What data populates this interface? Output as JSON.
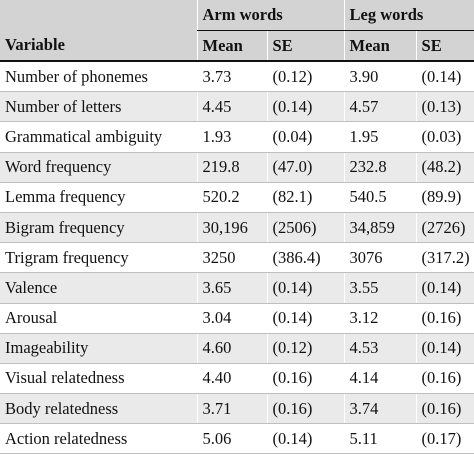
{
  "table": {
    "group_headers": [
      "",
      "Arm words",
      "Leg words"
    ],
    "column_headers": [
      "Variable",
      "Mean",
      "SE",
      "Mean",
      "SE"
    ],
    "rows": [
      [
        "Number of phonemes",
        "3.73",
        "(0.12)",
        "3.90",
        "(0.14)"
      ],
      [
        "Number of letters",
        "4.45",
        "(0.14)",
        "4.57",
        "(0.13)"
      ],
      [
        "Grammatical ambiguity",
        "1.93",
        "(0.04)",
        "1.95",
        "(0.03)"
      ],
      [
        "Word frequency",
        "219.8",
        "(47.0)",
        "232.8",
        "(48.2)"
      ],
      [
        "Lemma frequency",
        "520.2",
        "(82.1)",
        "540.5",
        "(89.9)"
      ],
      [
        "Bigram frequency",
        "30,196",
        "(2506)",
        "34,859",
        "(2726)"
      ],
      [
        "Trigram frequency",
        "3250",
        "(386.4)",
        "3076",
        "(317.2)"
      ],
      [
        "Valence",
        "3.65",
        "(0.14)",
        "3.55",
        "(0.14)"
      ],
      [
        "Arousal",
        "3.04",
        "(0.14)",
        "3.12",
        "(0.16)"
      ],
      [
        "Imageability",
        "4.60",
        "(0.12)",
        "4.53",
        "(0.14)"
      ],
      [
        "Visual relatedness",
        "4.40",
        "(0.16)",
        "4.14",
        "(0.16)"
      ],
      [
        "Body relatedness",
        "3.71",
        "(0.16)",
        "3.74",
        "(0.16)"
      ],
      [
        "Action relatedness",
        "5.06",
        "(0.14)",
        "5.11",
        "(0.17)"
      ]
    ]
  }
}
